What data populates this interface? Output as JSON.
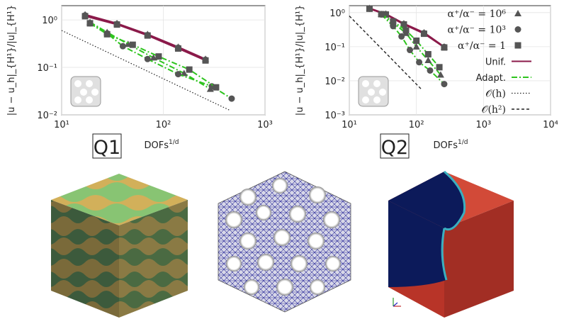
{
  "chart_data": [
    {
      "type": "line",
      "tag": "Q1",
      "xlabel": "DOFs",
      "xlabel_sup": "1/d",
      "ylabel": "|u − u_h|_{H¹}/|u|_{H¹}",
      "xscale": "log",
      "yscale": "log",
      "xlim": [
        10,
        1000
      ],
      "ylim": [
        0.01,
        2
      ],
      "xticks": [
        "10¹",
        "10²",
        "10³"
      ],
      "yticks": [
        "10⁰",
        "10⁻¹",
        "10⁻²"
      ],
      "grid": true,
      "series": [
        {
          "kind": "unif",
          "marker": "triangle",
          "x": [
            17,
            35,
            70,
            140,
            260
          ],
          "y": [
            1.3,
            0.85,
            0.5,
            0.27,
            0.15
          ]
        },
        {
          "kind": "unif",
          "marker": "circle",
          "x": [
            17,
            35,
            70,
            140,
            260
          ],
          "y": [
            1.25,
            0.82,
            0.48,
            0.26,
            0.145
          ]
        },
        {
          "kind": "unif",
          "marker": "square",
          "x": [
            17,
            35,
            70,
            140,
            260
          ],
          "y": [
            1.2,
            0.8,
            0.47,
            0.25,
            0.14
          ]
        },
        {
          "kind": "adapt",
          "marker": "triangle",
          "x": [
            19,
            28,
            45,
            80,
            160,
            290
          ],
          "y": [
            0.9,
            0.55,
            0.31,
            0.16,
            0.075,
            0.035
          ]
        },
        {
          "kind": "adapt",
          "marker": "circle",
          "x": [
            19,
            28,
            40,
            70,
            140,
            300,
            470
          ],
          "y": [
            0.85,
            0.52,
            0.28,
            0.15,
            0.072,
            0.04,
            0.022
          ]
        },
        {
          "kind": "adapt",
          "marker": "square",
          "x": [
            19,
            28,
            50,
            90,
            180,
            330
          ],
          "y": [
            0.85,
            0.5,
            0.3,
            0.17,
            0.09,
            0.038
          ]
        },
        {
          "kind": "order1",
          "x": [
            10,
            450
          ],
          "y": [
            0.6,
            0.0125
          ]
        }
      ]
    },
    {
      "type": "line",
      "tag": "Q2",
      "xlabel": "DOFs",
      "xlabel_sup": "1/d",
      "ylabel": "|u − u_h|_{H¹}/|u|_{H¹}",
      "xscale": "log",
      "yscale": "log",
      "xlim": [
        10,
        10000
      ],
      "ylim": [
        0.001,
        1.6
      ],
      "xticks": [
        "10¹",
        "10²",
        "10³",
        "10⁴"
      ],
      "yticks": [
        "10⁰",
        "10⁻¹",
        "10⁻²",
        "10⁻³"
      ],
      "grid": true,
      "series": [
        {
          "kind": "unif",
          "marker": "triangle",
          "x": [
            20,
            35,
            65,
            130,
            260
          ],
          "y": [
            1.35,
            0.92,
            0.48,
            0.26,
            0.1
          ]
        },
        {
          "kind": "unif",
          "marker": "circle",
          "x": [
            20,
            35,
            65,
            130,
            260
          ],
          "y": [
            1.3,
            0.9,
            0.46,
            0.25,
            0.098
          ]
        },
        {
          "kind": "unif",
          "marker": "square",
          "x": [
            20,
            35,
            65,
            130,
            260
          ],
          "y": [
            1.3,
            0.88,
            0.45,
            0.24,
            0.095
          ]
        },
        {
          "kind": "adapt",
          "marker": "triangle",
          "x": [
            30,
            45,
            70,
            100,
            150,
            230
          ],
          "y": [
            0.9,
            0.5,
            0.25,
            0.1,
            0.04,
            0.015
          ]
        },
        {
          "kind": "adapt",
          "marker": "circle",
          "x": [
            30,
            45,
            60,
            80,
            110,
            160,
            260
          ],
          "y": [
            0.88,
            0.4,
            0.2,
            0.08,
            0.035,
            0.02,
            0.008
          ]
        },
        {
          "kind": "adapt",
          "marker": "square",
          "x": [
            30,
            45,
            70,
            100,
            150,
            220
          ],
          "y": [
            0.9,
            0.55,
            0.3,
            0.15,
            0.06,
            0.025
          ]
        },
        {
          "kind": "order2",
          "x": [
            10,
            120
          ],
          "y": [
            0.8,
            0.0055
          ]
        }
      ]
    }
  ],
  "legend": {
    "entries": [
      {
        "marker": "triangle",
        "label": "α⁺/α⁻ = 10⁶"
      },
      {
        "marker": "circle",
        "label": "α⁺/α⁻ = 10³"
      },
      {
        "marker": "square",
        "label": "α⁺/α⁻ = 1"
      },
      {
        "line": "unif",
        "label": "Unif."
      },
      {
        "line": "adapt",
        "label": "Adapt."
      },
      {
        "line": "order1",
        "label": "𝒪(h)"
      },
      {
        "line": "order2",
        "label": "𝒪(h²)"
      }
    ]
  },
  "colors": {
    "unif": "#8b1a4a",
    "adapt": "#2ec41e",
    "marker": "#555555",
    "cube_green": "#88c473",
    "cube_orange": "#d2b05a",
    "cube_dark_green": "#3c5a3c",
    "cube_dark_orange": "#7a6a3a",
    "field_red": "#c63a2c",
    "field_blue": "#0c1a5a"
  },
  "images": {
    "left_cube": "wavy-striped-cube",
    "middle_mesh": "gyroid-mesh-cube",
    "right_field": "solution-field-cube",
    "inset": "gyroid-inset"
  }
}
